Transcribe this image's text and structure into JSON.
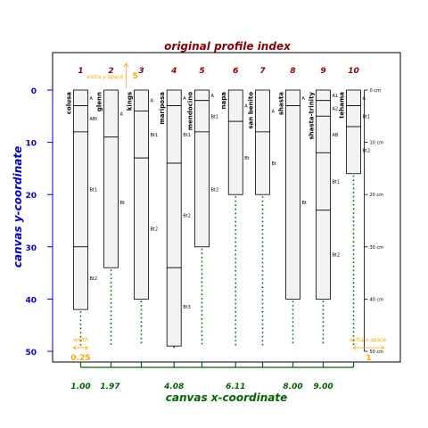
{
  "chart_data": {
    "type": "profile",
    "title": "original profile index",
    "xlabel": "canvas x-coordinate",
    "ylabel": "canvas y-coordinate",
    "ylim": [
      0,
      50
    ],
    "y_ticks": [
      0,
      10,
      20,
      30,
      40,
      50
    ],
    "x_tick_labels": [
      {
        "x": 1.0,
        "label": "1.00"
      },
      {
        "x": 1.97,
        "label": "1.97"
      },
      {
        "x": 4.08,
        "label": "4.08"
      },
      {
        "x": 6.11,
        "label": "6.11"
      },
      {
        "x": 8.0,
        "label": "8.00"
      },
      {
        "x": 9.0,
        "label": "9.00"
      }
    ],
    "depth_axis": {
      "ticks": [
        0,
        10,
        20,
        30,
        40,
        50
      ],
      "labels": [
        "0 cm",
        "10 cm",
        "20 cm",
        "30 cm",
        "40 cm",
        "50 cm"
      ]
    },
    "width": 0.25,
    "annotations": {
      "width_label": "width",
      "width_value": "0.25",
      "extra_y_label": "extra y-space",
      "extra_y_value": "5",
      "extra_x_label": "extra x-space",
      "extra_x_value": "1"
    },
    "profiles": [
      {
        "index": "1",
        "name": "colusa",
        "x": 1.0,
        "horizons": [
          {
            "name": "A",
            "top": 0,
            "bottom": 3
          },
          {
            "name": "ABt",
            "top": 3,
            "bottom": 8
          },
          {
            "name": "Bt1",
            "top": 8,
            "bottom": 30
          },
          {
            "name": "Bt2",
            "top": 30,
            "bottom": 42
          }
        ]
      },
      {
        "index": "2",
        "name": "glenn",
        "x": 2.0,
        "horizons": [
          {
            "name": "A",
            "top": 0,
            "bottom": 9
          },
          {
            "name": "Bt",
            "top": 9,
            "bottom": 34
          }
        ]
      },
      {
        "index": "3",
        "name": "kings",
        "x": 3.0,
        "horizons": [
          {
            "name": "A",
            "top": 0,
            "bottom": 4
          },
          {
            "name": "Bt1",
            "top": 4,
            "bottom": 13
          },
          {
            "name": "Bt2",
            "top": 13,
            "bottom": 40
          }
        ]
      },
      {
        "index": "4",
        "name": "mariposa",
        "x": 4.08,
        "horizons": [
          {
            "name": "A",
            "top": 0,
            "bottom": 3
          },
          {
            "name": "Bt1",
            "top": 3,
            "bottom": 14
          },
          {
            "name": "Bt2",
            "top": 14,
            "bottom": 34
          },
          {
            "name": "Bt3",
            "top": 34,
            "bottom": 49
          }
        ]
      },
      {
        "index": "5",
        "name": "mendocino",
        "x": 5.0,
        "horizons": [
          {
            "name": "A",
            "top": 0,
            "bottom": 2
          },
          {
            "name": "Bt1",
            "top": 2,
            "bottom": 8
          },
          {
            "name": "Bt2",
            "top": 8,
            "bottom": 30
          }
        ]
      },
      {
        "index": "6",
        "name": "napa",
        "x": 6.11,
        "horizons": [
          {
            "name": "A",
            "top": 0,
            "bottom": 6
          },
          {
            "name": "Bt",
            "top": 6,
            "bottom": 20
          }
        ]
      },
      {
        "index": "7",
        "name": "san benito",
        "x": 7.0,
        "horizons": [
          {
            "name": "A",
            "top": 0,
            "bottom": 8
          },
          {
            "name": "Bt",
            "top": 8,
            "bottom": 20
          }
        ]
      },
      {
        "index": "8",
        "name": "shasta",
        "x": 8.0,
        "horizons": [
          {
            "name": "A",
            "top": 0,
            "bottom": 3
          },
          {
            "name": "Bt",
            "top": 3,
            "bottom": 40
          }
        ]
      },
      {
        "index": "9",
        "name": "shasta-trinity",
        "x": 9.0,
        "horizons": [
          {
            "name": "A1",
            "top": 0,
            "bottom": 2
          },
          {
            "name": "A2",
            "top": 2,
            "bottom": 5
          },
          {
            "name": "AB",
            "top": 5,
            "bottom": 12
          },
          {
            "name": "Bt1",
            "top": 12,
            "bottom": 23
          },
          {
            "name": "Bt2",
            "top": 23,
            "bottom": 40
          }
        ]
      },
      {
        "index": "10",
        "name": "tehama",
        "x": 10.0,
        "horizons": [
          {
            "name": "A",
            "top": 0,
            "bottom": 3
          },
          {
            "name": "Bt1",
            "top": 3,
            "bottom": 7
          },
          {
            "name": "Bt2",
            "top": 7,
            "bottom": 16
          }
        ]
      }
    ],
    "colors": {
      "title": "#8b0000",
      "y_axis": "#0000cc",
      "x_axis": "#006400",
      "annotation": "#ffa500",
      "profile_fill": "#f2f2f2"
    }
  }
}
